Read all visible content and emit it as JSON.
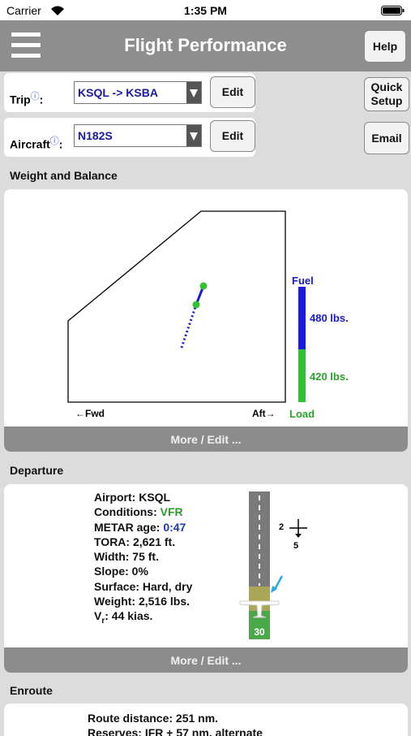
{
  "status": {
    "carrier": "Carrier",
    "time": "1:35 PM"
  },
  "nav": {
    "title": "Flight Performance",
    "help": "Help"
  },
  "trip": {
    "label": "Trip",
    "info": "ⓘ",
    "colon": ":",
    "value": "KSQL -> KSBA",
    "edit": "Edit"
  },
  "aircraft": {
    "label": "Aircraft",
    "info": "ⓘ",
    "colon": ":",
    "value": "N182S",
    "edit": "Edit"
  },
  "buttons": {
    "quick_setup": "Quick Setup",
    "email": "Email"
  },
  "weight_balance": {
    "heading": "Weight and Balance",
    "fuel_label": "Fuel",
    "fuel": "480 lbs.",
    "load": "420 lbs.",
    "load_label": "Load",
    "fwd": "←Fwd",
    "aft": "Aft→",
    "more": "More / Edit ..."
  },
  "departure": {
    "heading": "Departure",
    "airport": "Airport: KSQL",
    "conditions_label": "Conditions:",
    "conditions": "VFR",
    "metar_label": "METAR age:",
    "metar": "0:47",
    "tora": "TORA: 2,621 ft.",
    "width": "Width: 75 ft.",
    "slope": "Slope: 0%",
    "surface": "Surface: Hard, dry",
    "weight": "Weight: 2,516 lbs.",
    "vr_v": "V",
    "vr_sub": "r",
    "vr_rest": ": 44 kias.",
    "runway": "30",
    "wind_left": "2",
    "wind_bottom": "5",
    "more": "More / Edit ..."
  },
  "enroute": {
    "heading": "Enroute",
    "distance": "Route distance: 251 nm.",
    "reserves": "Reserves: IFR + 57 nm. alternate"
  }
}
